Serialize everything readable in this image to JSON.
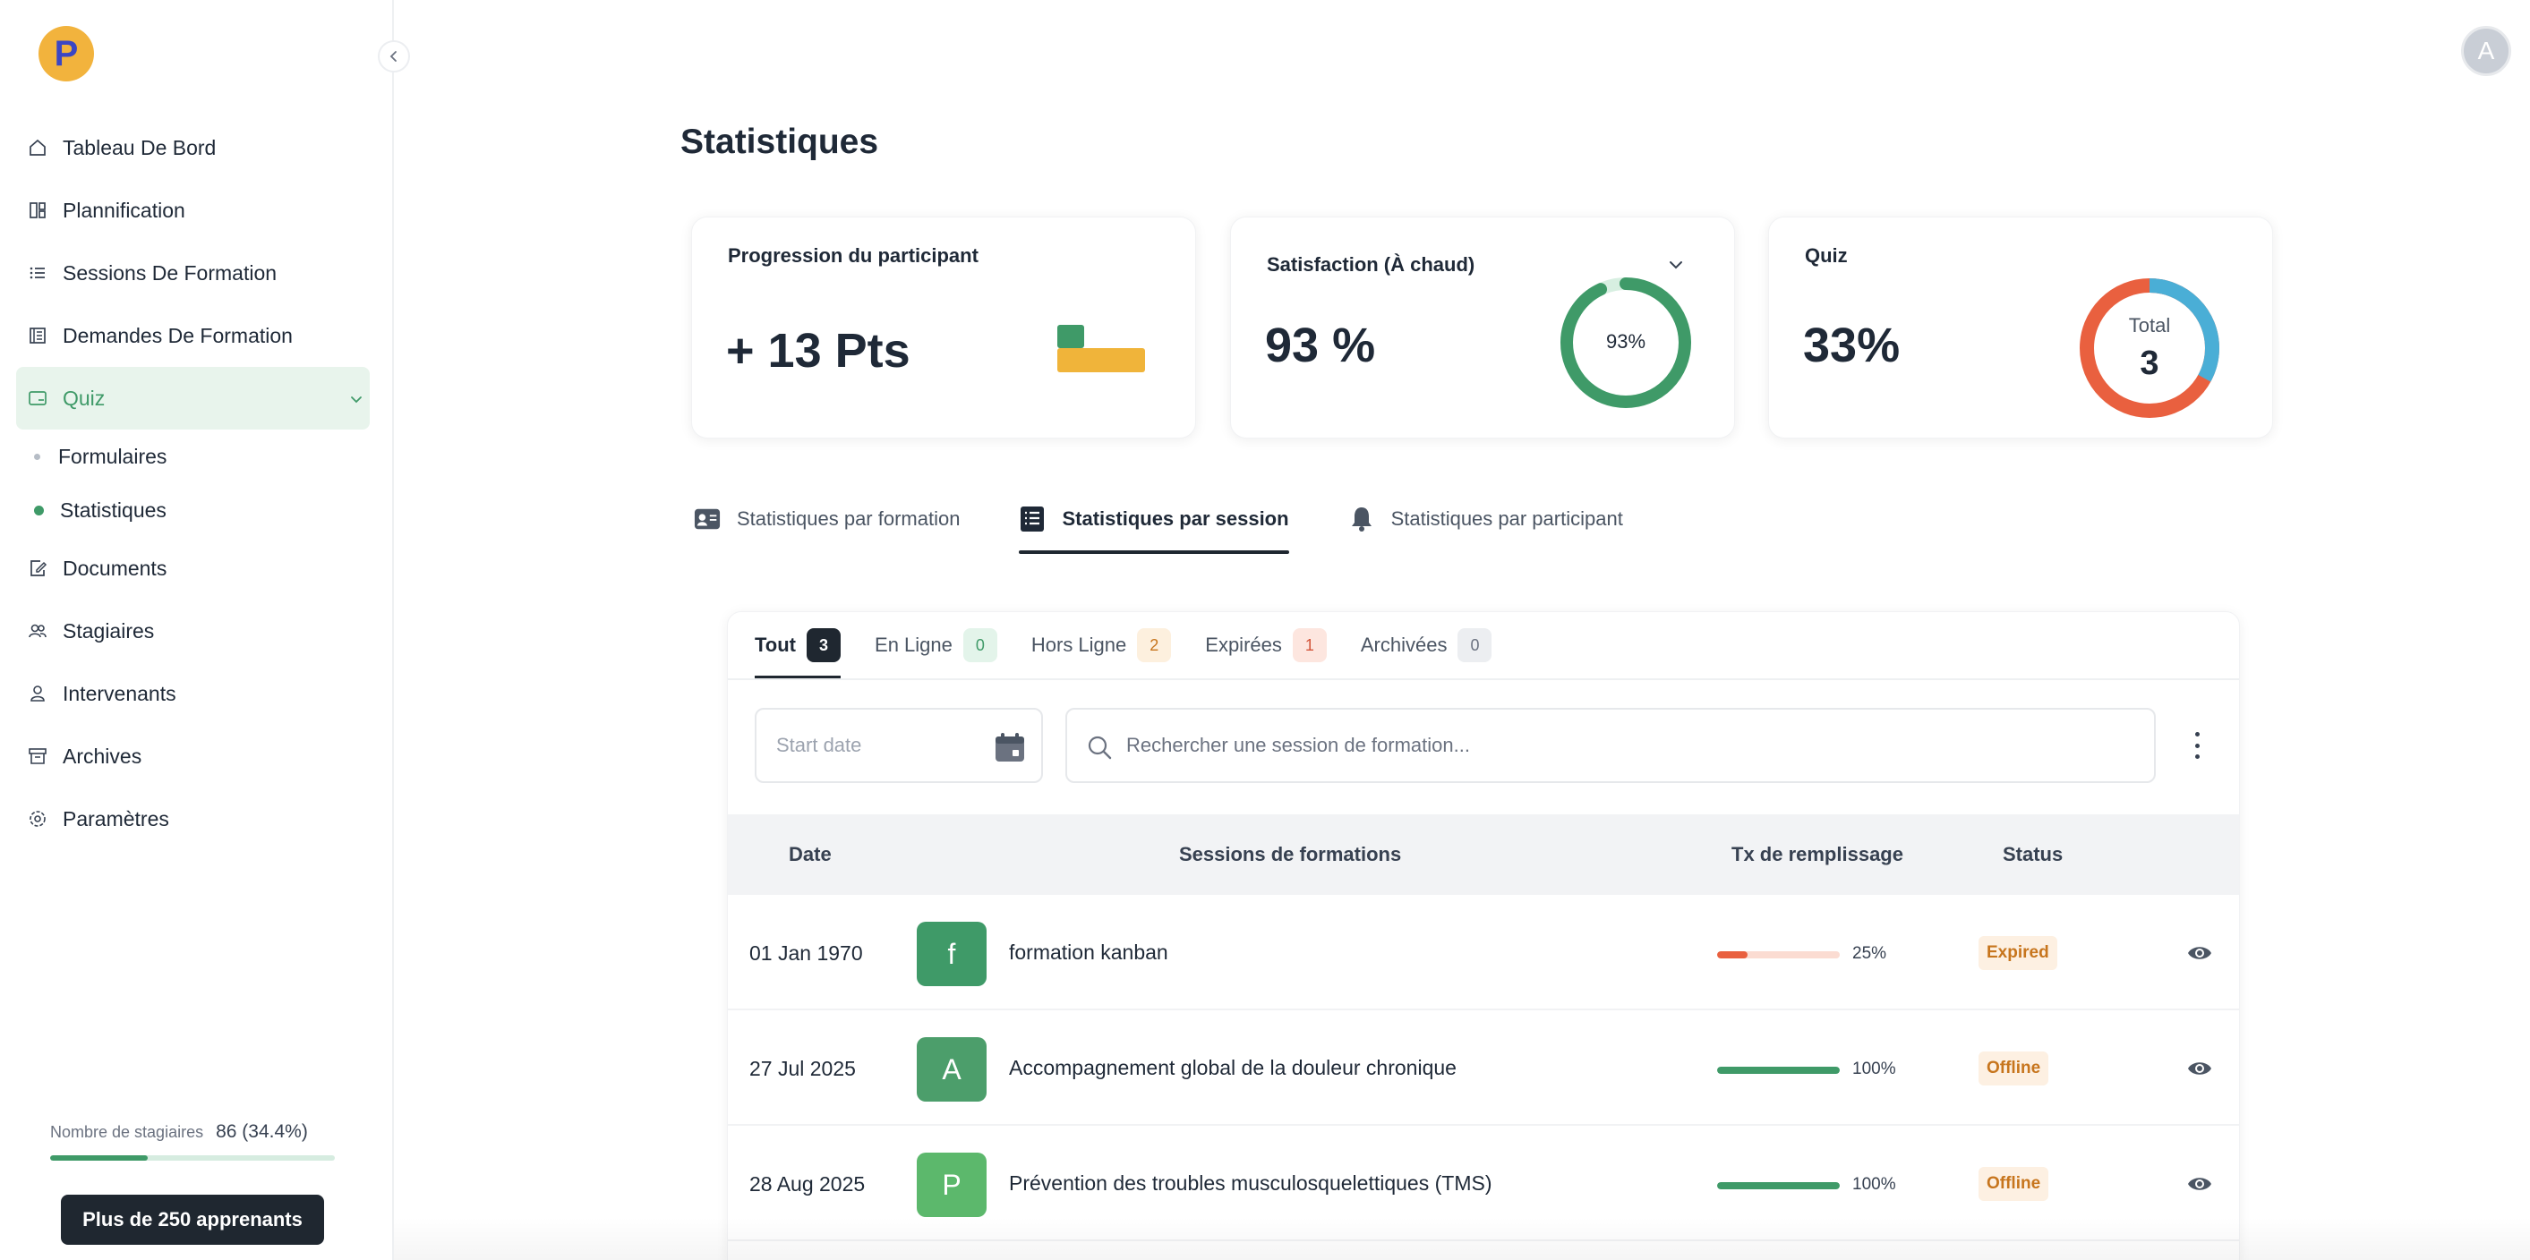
{
  "app": {
    "logo_letter": "P",
    "user_initial": "A"
  },
  "sidebar": {
    "items": [
      {
        "label": "Tableau De Bord",
        "icon": "home-icon"
      },
      {
        "label": "Plannification",
        "icon": "layout-icon"
      },
      {
        "label": "Sessions De Formation",
        "icon": "list-icon"
      },
      {
        "label": "Demandes De Formation",
        "icon": "document-list-icon"
      },
      {
        "label": "Quiz",
        "icon": "card-icon",
        "active": true
      },
      {
        "label": "Documents",
        "icon": "document-edit-icon"
      },
      {
        "label": "Stagiaires",
        "icon": "users-icon"
      },
      {
        "label": "Intervenants",
        "icon": "user-icon"
      },
      {
        "label": "Archives",
        "icon": "archive-icon"
      },
      {
        "label": "Paramètres",
        "icon": "settings-icon"
      }
    ],
    "sub_items": [
      {
        "label": "Formulaires"
      },
      {
        "label": "Statistiques",
        "active": true
      }
    ],
    "trainees_label": "Nombre de stagiaires",
    "trainees_value": "86 (34.4%)",
    "trainees_progress": 0.344,
    "upgrade_button": "Plus de 250 apprenants"
  },
  "page": {
    "title": "Statistiques"
  },
  "cards": {
    "progression": {
      "title": "Progression du participant",
      "value": "+ 13 Pts"
    },
    "satisfaction": {
      "title": "Satisfaction (À chaud)",
      "value": "93 %",
      "donut_label": "93%",
      "percent": 93
    },
    "quiz": {
      "title": "Quiz",
      "value": "33%",
      "total_label": "Total",
      "total_value": "3",
      "percent": 33
    }
  },
  "view_tabs": [
    {
      "label": "Statistiques par formation",
      "icon": "id-card-icon"
    },
    {
      "label": "Statistiques par session",
      "icon": "list-alt-icon",
      "active": true
    },
    {
      "label": "Statistiques par participant",
      "icon": "bell-icon"
    }
  ],
  "filter_tabs": [
    {
      "label": "Tout",
      "count": "3",
      "active": true
    },
    {
      "label": "En Ligne",
      "count": "0"
    },
    {
      "label": "Hors Ligne",
      "count": "2"
    },
    {
      "label": "Expirées",
      "count": "1"
    },
    {
      "label": "Archivées",
      "count": "0"
    }
  ],
  "filters": {
    "date_placeholder": "Start date",
    "search_placeholder": "Rechercher une session de formation..."
  },
  "table": {
    "columns": [
      "Date",
      "Sessions de formations",
      "Tx de remplissage",
      "Status"
    ],
    "rows": [
      {
        "date": "01 Jan 1970",
        "initial": "f",
        "name": "formation kanban",
        "fill": 25,
        "fill_label": "25%",
        "status": "Expired"
      },
      {
        "date": "27 Jul 2025",
        "initial": "A",
        "name": "Accompagnement global de la douleur chronique",
        "fill": 100,
        "fill_label": "100%",
        "status": "Offline"
      },
      {
        "date": "28 Aug 2025",
        "initial": "P",
        "name": "Prévention des troubles musculosquelettiques (TMS)",
        "fill": 100,
        "fill_label": "100%",
        "status": "Offline"
      }
    ]
  },
  "colors": {
    "brand_green": "#3f9a68",
    "logo_yellow": "#f2b33d",
    "logo_blue": "#3b46c4",
    "quiz_blue": "#4aaed6",
    "quiz_orange": "#e9603f",
    "expired_bg": "#fdf0e2",
    "expired_text": "#c7751d"
  }
}
